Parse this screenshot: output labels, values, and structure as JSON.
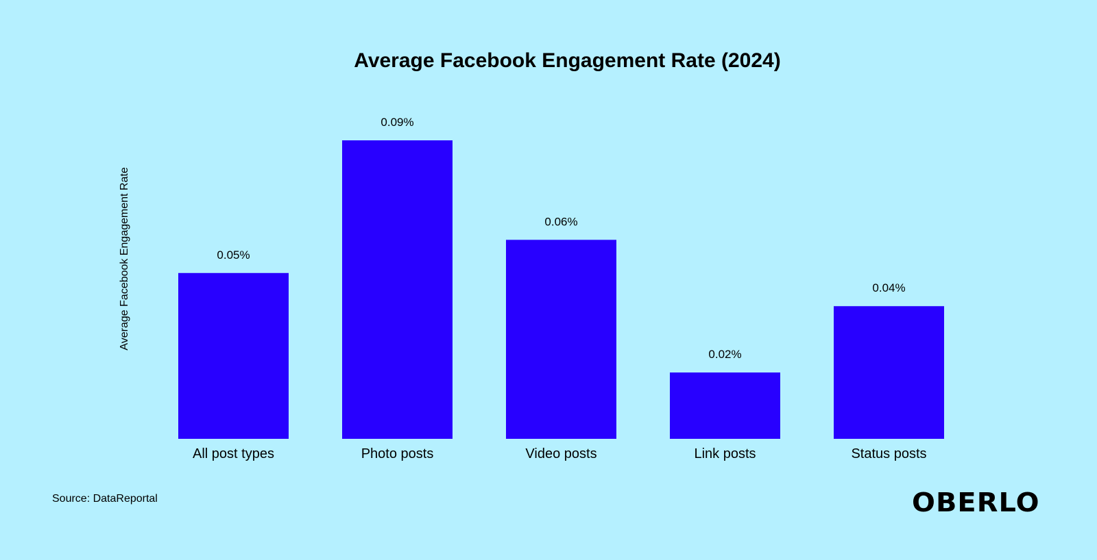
{
  "chart_data": {
    "type": "bar",
    "title": "Average Facebook Engagement Rate (2024)",
    "xlabel": "",
    "ylabel": "Average Facebook Engagement Rate",
    "categories": [
      "All post types",
      "Photo posts",
      "Video posts",
      "Link posts",
      "Status posts"
    ],
    "values": [
      0.05,
      0.09,
      0.06,
      0.02,
      0.04
    ],
    "data_labels": [
      "0.05%",
      "0.09%",
      "0.06%",
      "0.02%",
      "0.04%"
    ],
    "unit": "%",
    "ylim": [
      0,
      0.09
    ],
    "grid": false,
    "bar_color": "#2800ff",
    "background_color": "#b5f0ff"
  },
  "source": "Source: DataReportal",
  "logo": "OBERLO"
}
